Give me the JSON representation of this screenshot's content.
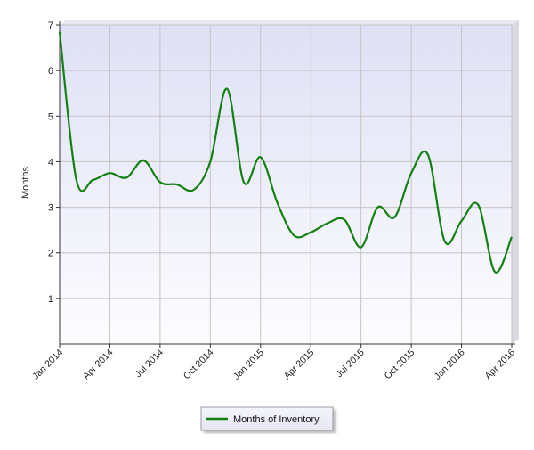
{
  "chart_data": {
    "type": "line",
    "title": "",
    "xlabel": "",
    "ylabel": "Months",
    "ylim": [
      0,
      7
    ],
    "yticks": [
      1,
      2,
      3,
      4,
      5,
      6,
      7
    ],
    "x_tick_labels": [
      "Jan 2014",
      "Apr 2014",
      "Jul 2014",
      "Oct 2014",
      "Jan 2015",
      "Apr 2015",
      "Jul 2015",
      "Oct 2015",
      "Jan 2016",
      "Apr 2016"
    ],
    "grid": true,
    "legend_position": "bottom-center",
    "series": [
      {
        "name": "Months of Inventory",
        "color": "#138013",
        "x": [
          "2014-01",
          "2014-02",
          "2014-03",
          "2014-04",
          "2014-05",
          "2014-06",
          "2014-07",
          "2014-08",
          "2014-09",
          "2014-10",
          "2014-11",
          "2014-12",
          "2015-01",
          "2015-02",
          "2015-03",
          "2015-04",
          "2015-05",
          "2015-06",
          "2015-07",
          "2015-08",
          "2015-09",
          "2015-10",
          "2015-11",
          "2015-12",
          "2016-01",
          "2016-02",
          "2016-03",
          "2016-04"
        ],
        "values": [
          6.85,
          3.6,
          3.6,
          3.75,
          3.65,
          4.03,
          3.55,
          3.5,
          3.38,
          4.0,
          5.6,
          3.55,
          4.1,
          3.1,
          2.38,
          2.45,
          2.65,
          2.73,
          2.12,
          3.0,
          2.78,
          3.75,
          4.15,
          2.25,
          2.7,
          3.05,
          1.58,
          2.35
        ]
      }
    ]
  },
  "legend": {
    "label": "Months of Inventory"
  },
  "colors": {
    "plot_top": "#dfe0f5",
    "plot_bottom": "#fdfdff",
    "grid": "#c4c4c4",
    "axis": "#333333",
    "line": "#138013"
  }
}
